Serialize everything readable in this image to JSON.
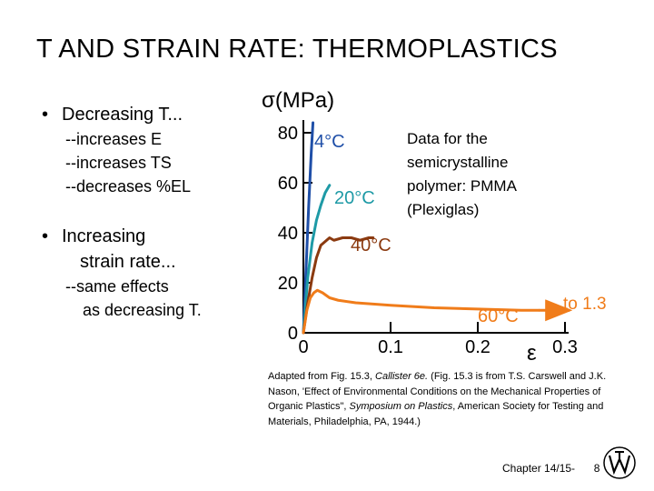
{
  "slide": {
    "title": "T AND STRAIN RATE: THERMOPLASTICS",
    "bullet_symbol": "•",
    "bullet1": "Decreasing T...",
    "bullet1_subs": [
      "--increases E",
      "--increases TS",
      "--decreases %EL"
    ],
    "bullet2_line1": "Increasing",
    "bullet2_line2": "strain rate...",
    "bullet2_subs": [
      "--same effects",
      "as decreasing T."
    ],
    "caption_parts": [
      "Adapted from Fig. 15.3, ",
      "Callister 6e.",
      " (Fig. 15.3 is from T.S. Carswell and J.K. Nason, 'Effect of Environmental Conditions on the Mechanical Properties of Organic Plastics\", ",
      "Symposium on Plastics",
      ", American Society for Testing and Materials, Philadelphia, PA, 1944.)"
    ],
    "footer": "Chapter 14/15-",
    "page_number": "8"
  },
  "chart_data": {
    "type": "line",
    "ylabel": "σ(MPa)",
    "xlabel": "ε",
    "xlim": [
      0,
      0.3
    ],
    "ylim": [
      0,
      80
    ],
    "x_ticks": [
      "0",
      "0.1",
      "0.2",
      "0.3"
    ],
    "x_tick_values": [
      0,
      0.1,
      0.2,
      0.3
    ],
    "y_ticks": [
      "0",
      "20",
      "40",
      "60",
      "80"
    ],
    "y_tick_values": [
      0,
      20,
      40,
      60,
      80
    ],
    "annotation_lines": [
      "Data for the",
      "semicrystalline",
      "polymer: PMMA",
      "(Plexiglas)"
    ],
    "arrow_label": "to 1.3",
    "series": [
      {
        "name": "4°C",
        "color": "#1f4fa8",
        "x": [
          0,
          0.003,
          0.006,
          0.009,
          0.011
        ],
        "y": [
          0,
          25,
          50,
          72,
          84
        ]
      },
      {
        "name": "20°C",
        "color": "#1e9aa6",
        "x": [
          0,
          0.005,
          0.01,
          0.015,
          0.02,
          0.025,
          0.03
        ],
        "y": [
          0,
          22,
          36,
          45,
          51,
          56,
          59
        ]
      },
      {
        "name": "40°C",
        "color": "#8b3a10",
        "x": [
          0,
          0.005,
          0.01,
          0.015,
          0.02,
          0.03,
          0.035,
          0.045,
          0.055,
          0.065,
          0.075,
          0.08
        ],
        "y": [
          0,
          12,
          22,
          30,
          35,
          38,
          37,
          38,
          38,
          37,
          38,
          38
        ]
      },
      {
        "name": "60°C",
        "color": "#f07c1a",
        "x": [
          0,
          0.004,
          0.008,
          0.012,
          0.016,
          0.022,
          0.03,
          0.04,
          0.06,
          0.1,
          0.15,
          0.2,
          0.25,
          0.27
        ],
        "y": [
          0,
          9,
          14,
          16,
          17,
          16,
          14,
          13,
          12,
          11,
          10,
          9.5,
          9,
          9
        ]
      }
    ],
    "series_labels": [
      "4°C",
      "20°C",
      "40°C",
      "60°C"
    ]
  }
}
